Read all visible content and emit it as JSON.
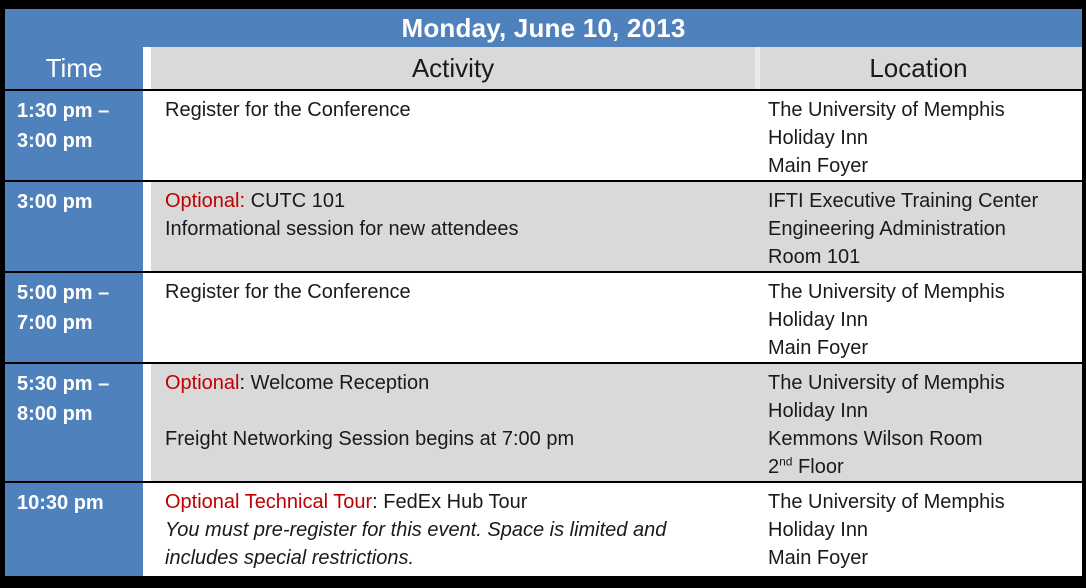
{
  "title": "Monday, June 10, 2013",
  "columns": {
    "time": "Time",
    "activity": "Activity",
    "location": "Location"
  },
  "colors": {
    "title_bar_blue": "#4F81BD",
    "time_column_blue": "#4F81BD",
    "header_band_gray": "#D9D9D9",
    "shaded_row_gray": "#D9D9D9",
    "optional_red": "#C00000",
    "frame_border_black": "#000000"
  },
  "rows": [
    {
      "time_lines": [
        "1:30 pm –",
        "3:00 pm"
      ],
      "shaded": false,
      "activity_lines": [
        [
          {
            "text": "Register for the Conference"
          }
        ]
      ],
      "location_lines": [
        [
          {
            "text": "The University of Memphis"
          }
        ],
        [
          {
            "text": "Holiday Inn"
          }
        ],
        [
          {
            "text": "Main Foyer"
          }
        ]
      ]
    },
    {
      "time_lines": [
        "3:00 pm"
      ],
      "shaded": true,
      "activity_lines": [
        [
          {
            "text": "Optional:",
            "style": "red"
          },
          {
            "text": " CUTC 101"
          }
        ],
        [
          {
            "text": "Informational session for new attendees"
          }
        ]
      ],
      "location_lines": [
        [
          {
            "text": "IFTI Executive Training Center"
          }
        ],
        [
          {
            "text": "Engineering Administration"
          }
        ],
        [
          {
            "text": "Room 101"
          }
        ]
      ]
    },
    {
      "time_lines": [
        "5:00 pm –",
        "7:00 pm"
      ],
      "shaded": false,
      "activity_lines": [
        [
          {
            "text": "Register for the Conference"
          }
        ]
      ],
      "location_lines": [
        [
          {
            "text": "The University of Memphis"
          }
        ],
        [
          {
            "text": "Holiday Inn"
          }
        ],
        [
          {
            "text": "Main Foyer"
          }
        ]
      ]
    },
    {
      "time_lines": [
        "5:30 pm –",
        "8:00 pm"
      ],
      "shaded": true,
      "activity_lines": [
        [
          {
            "text": "Optional",
            "style": "red"
          },
          {
            "text": ": Welcome Reception"
          }
        ],
        [],
        [
          {
            "text": "Freight Networking Session begins at 7:00 pm"
          }
        ]
      ],
      "location_lines": [
        [
          {
            "text": "The University of Memphis"
          }
        ],
        [
          {
            "text": "Holiday Inn"
          }
        ],
        [
          {
            "text": "Kemmons Wilson Room"
          }
        ],
        [
          {
            "text": "2"
          },
          {
            "text": "nd",
            "style": "sup"
          },
          {
            "text": " Floor"
          }
        ]
      ]
    },
    {
      "time_lines": [
        "10:30 pm"
      ],
      "shaded": false,
      "activity_lines": [
        [
          {
            "text": "Optional Technical Tour",
            "style": "red"
          },
          {
            "text": ": FedEx Hub Tour"
          }
        ],
        [
          {
            "text": "You must pre-register for this event. Space is limited and",
            "style": "italic"
          }
        ],
        [
          {
            "text": "includes special restrictions.",
            "style": "italic"
          }
        ]
      ],
      "location_lines": [
        [
          {
            "text": "The University of Memphis"
          }
        ],
        [
          {
            "text": "Holiday Inn"
          }
        ],
        [
          {
            "text": "Main Foyer"
          }
        ]
      ]
    }
  ]
}
